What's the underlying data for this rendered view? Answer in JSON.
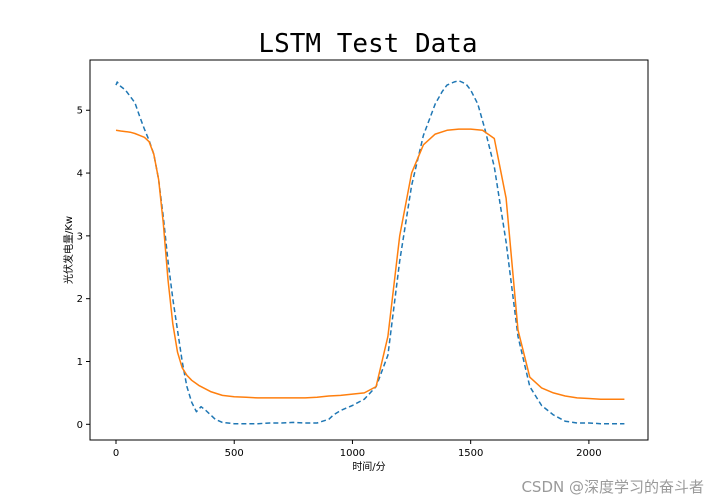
{
  "chart_data": {
    "type": "line",
    "title": "LSTM Test Data",
    "xlabel": "时间/分",
    "ylabel": "光伏发电量/Kw",
    "xlim": [
      -110,
      2250
    ],
    "ylim": [
      -0.25,
      5.8
    ],
    "xticks": [
      0,
      500,
      1000,
      1500,
      2000
    ],
    "yticks": [
      0,
      1,
      2,
      3,
      4,
      5
    ],
    "grid": false,
    "series": [
      {
        "color": "#1f77b4",
        "linestyle": "dashed",
        "x": [
          0,
          5,
          20,
          40,
          60,
          80,
          100,
          120,
          140,
          160,
          180,
          200,
          220,
          240,
          260,
          280,
          300,
          320,
          340,
          360,
          380,
          400,
          420,
          450,
          500,
          550,
          600,
          650,
          700,
          750,
          800,
          850,
          900,
          920,
          950,
          1000,
          1050,
          1100,
          1150,
          1200,
          1250,
          1300,
          1350,
          1380,
          1400,
          1430,
          1450,
          1480,
          1500,
          1530,
          1560,
          1600,
          1650,
          1700,
          1750,
          1800,
          1850,
          1900,
          1950,
          2000,
          2050,
          2100,
          2150
        ],
        "y": [
          5.4,
          5.45,
          5.38,
          5.32,
          5.22,
          5.12,
          4.9,
          4.7,
          4.52,
          4.3,
          3.9,
          3.3,
          2.6,
          2.0,
          1.5,
          1.0,
          0.6,
          0.35,
          0.2,
          0.28,
          0.22,
          0.15,
          0.08,
          0.03,
          0.01,
          0.01,
          0.01,
          0.02,
          0.02,
          0.03,
          0.02,
          0.02,
          0.08,
          0.15,
          0.22,
          0.3,
          0.4,
          0.6,
          1.1,
          2.6,
          3.8,
          4.6,
          5.1,
          5.3,
          5.4,
          5.45,
          5.47,
          5.42,
          5.32,
          5.1,
          4.7,
          4.1,
          2.9,
          1.4,
          0.6,
          0.3,
          0.15,
          0.05,
          0.02,
          0.02,
          0.01,
          0.01,
          0.01
        ]
      },
      {
        "color": "#ff7f0e",
        "linestyle": "solid",
        "x": [
          0,
          20,
          40,
          60,
          80,
          100,
          120,
          140,
          160,
          180,
          200,
          220,
          240,
          260,
          280,
          300,
          320,
          350,
          400,
          450,
          500,
          550,
          600,
          700,
          800,
          850,
          900,
          950,
          1000,
          1050,
          1100,
          1150,
          1200,
          1250,
          1300,
          1350,
          1400,
          1450,
          1500,
          1550,
          1600,
          1650,
          1700,
          1750,
          1800,
          1850,
          1900,
          1950,
          2000,
          2050,
          2100,
          2150
        ],
        "y": [
          4.68,
          4.67,
          4.66,
          4.65,
          4.63,
          4.6,
          4.57,
          4.5,
          4.3,
          3.9,
          3.2,
          2.3,
          1.6,
          1.15,
          0.9,
          0.78,
          0.7,
          0.62,
          0.52,
          0.46,
          0.44,
          0.43,
          0.42,
          0.42,
          0.42,
          0.43,
          0.45,
          0.46,
          0.48,
          0.5,
          0.6,
          1.4,
          3.0,
          4.0,
          4.45,
          4.62,
          4.68,
          4.7,
          4.7,
          4.68,
          4.55,
          3.6,
          1.5,
          0.75,
          0.58,
          0.5,
          0.45,
          0.42,
          0.41,
          0.4,
          0.4,
          0.4
        ]
      }
    ]
  },
  "watermark": "CSDN @深度学习的奋斗者"
}
